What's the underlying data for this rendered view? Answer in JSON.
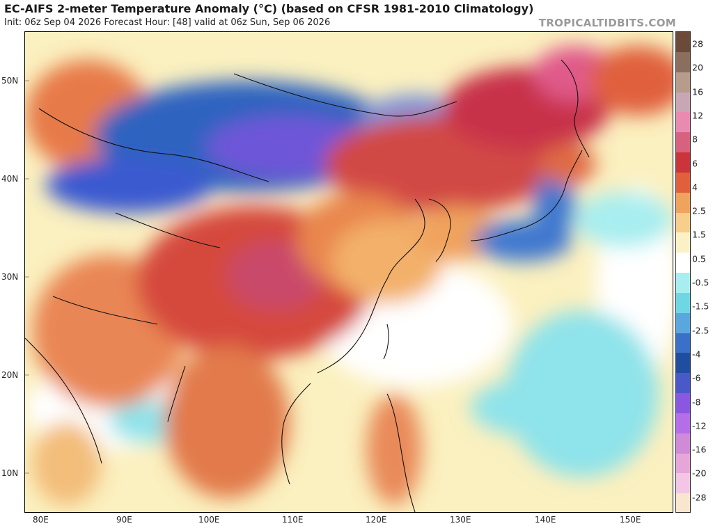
{
  "header": {
    "title": "EC-AIFS 2-meter Temperature Anomaly (°C) (based on CFSR 1981-2010 Climatology)",
    "subtitle": "Init: 06z Sep 04 2026   Forecast Hour: [48]   valid at 06z Sun, Sep 06 2026",
    "brand": "TROPICALTIDBITS.COM"
  },
  "map": {
    "latitude_labels": [
      "50N",
      "40N",
      "30N",
      "20N",
      "10N"
    ],
    "longitude_labels": [
      "80E",
      "90E",
      "100E",
      "110E",
      "120E",
      "130E",
      "140E",
      "150E"
    ]
  },
  "colorbar": {
    "labels": [
      "28",
      "20",
      "16",
      "12",
      "8",
      "6",
      "4",
      "2.5",
      "1.5",
      "0.5",
      "-0.5",
      "-1.5",
      "-2.5",
      "-4",
      "-6",
      "-8",
      "-12",
      "-16",
      "-20",
      "-28"
    ],
    "colors": [
      "#6b4a3a",
      "#8c6e5e",
      "#b79b8c",
      "#c9a6b3",
      "#e98bb1",
      "#d7627f",
      "#c9353a",
      "#e0603e",
      "#f0a35d",
      "#f7ce8a",
      "#fbf1c4",
      "#ffffff",
      "#a8eef0",
      "#6fd7e3",
      "#5aa7e0",
      "#3a70c8",
      "#1f4ea0",
      "#4b58c8",
      "#8a58e0",
      "#b36ee8",
      "#d08ad8",
      "#e6a6d8",
      "#f3c6e5",
      "#f9e6cf"
    ]
  }
}
